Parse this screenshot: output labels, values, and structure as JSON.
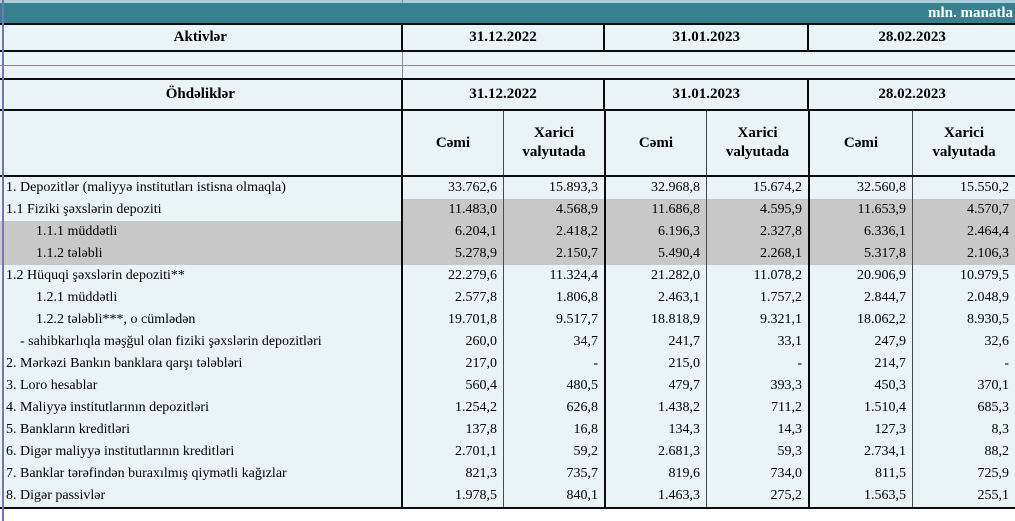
{
  "unit_label": "mln. manatla",
  "assets_header": {
    "title": "Aktivlər",
    "dates": [
      "31.12.2022",
      "31.01.2023",
      "28.02.2023"
    ]
  },
  "liabilities_header": {
    "title": "Öhdəliklər",
    "dates": [
      "31.12.2022",
      "31.01.2023",
      "28.02.2023"
    ]
  },
  "subheaders": {
    "total": "Cəmi",
    "foreign": "Xarici valyutada"
  },
  "colors": {
    "band_teal": "#37808f",
    "strip_blue": "#a8cedd",
    "cell_background": "#eaf3f6",
    "highlight_gray": "#c8c8c8",
    "selection_green": "#2d7c4f",
    "pane_line_purple": "#7577b5"
  },
  "rows": [
    {
      "label": "1. Depozitlər (maliyyə institutları istisna olmaqla)",
      "indent": 0,
      "highlight": "none",
      "block": "",
      "values": [
        "33.762,6",
        "15.893,3",
        "32.968,8",
        "15.674,2",
        "32.560,8",
        "15.550,2"
      ]
    },
    {
      "label": "1.1 Fiziki şəxslərin depoziti",
      "indent": 0,
      "highlight": "values",
      "block": "top",
      "values": [
        "11.483,0",
        "4.568,9",
        "11.686,8",
        "4.595,9",
        "11.653,9",
        "4.570,7"
      ]
    },
    {
      "label": "1.1.1 müddətli",
      "indent": 1,
      "highlight": "full",
      "block": "mid",
      "values": [
        "6.204,1",
        "2.418,2",
        "6.196,3",
        "2.327,8",
        "6.336,1",
        "2.464,4"
      ]
    },
    {
      "label": "1.1.2 tələbli",
      "indent": 1,
      "highlight": "full",
      "block": "bot",
      "values": [
        "5.278,9",
        "2.150,7",
        "5.490,4",
        "2.268,1",
        "5.317,8",
        "2.106,3"
      ]
    },
    {
      "label": "1.2 Hüquqi şəxslərin depoziti**",
      "indent": 0,
      "highlight": "none",
      "block": "",
      "values": [
        "22.279,6",
        "11.324,4",
        "21.282,0",
        "11.078,2",
        "20.906,9",
        "10.979,5"
      ]
    },
    {
      "label": "1.2.1 müddətli",
      "indent": 1,
      "highlight": "none",
      "block": "",
      "values": [
        "2.577,8",
        "1.806,8",
        "2.463,1",
        "1.757,2",
        "2.844,7",
        "2.048,9"
      ]
    },
    {
      "label": "1.2.2 tələbli***, o cümlədən",
      "indent": 1,
      "highlight": "none",
      "block": "",
      "values": [
        "19.701,8",
        "9.517,7",
        "18.818,9",
        "9.321,1",
        "18.062,2",
        "8.930,5"
      ]
    },
    {
      "label": "- sahibkarlıqla məşğul olan fiziki şəxslərin depozitləri",
      "indent": 2,
      "highlight": "none",
      "block": "",
      "values": [
        "260,0",
        "34,7",
        "241,7",
        "33,1",
        "247,9",
        "32,6"
      ]
    },
    {
      "label": "2. Mərkəzi Bankın banklara qarşı tələbləri",
      "indent": 0,
      "highlight": "none",
      "block": "",
      "values": [
        "217,0",
        "-",
        "215,0",
        "-",
        "214,7",
        "-"
      ]
    },
    {
      "label": "3. Loro hesablar",
      "indent": 0,
      "highlight": "none",
      "block": "",
      "values": [
        "560,4",
        "480,5",
        "479,7",
        "393,3",
        "450,3",
        "370,1"
      ]
    },
    {
      "label": "4. Maliyyə institutlarının  depozitləri",
      "indent": 0,
      "highlight": "none",
      "block": "",
      "values": [
        "1.254,2",
        "626,8",
        "1.438,2",
        "711,2",
        "1.510,4",
        "685,3"
      ]
    },
    {
      "label": "5. Bankların kreditləri",
      "indent": 0,
      "highlight": "none",
      "block": "",
      "values": [
        "137,8",
        "16,8",
        "134,3",
        "14,3",
        "127,3",
        "8,3"
      ]
    },
    {
      "label": "6. Digər maliyyə institutlarının kreditləri",
      "indent": 0,
      "highlight": "none",
      "block": "",
      "values": [
        "2.701,1",
        "59,2",
        "2.681,3",
        "59,3",
        "2.734,1",
        "88,2"
      ]
    },
    {
      "label": "7. Banklar tərəfindən buraxılmış qiymətli kağızlar",
      "indent": 0,
      "highlight": "none",
      "block": "",
      "values": [
        "821,3",
        "735,7",
        "819,6",
        "734,0",
        "811,5",
        "725,9"
      ]
    },
    {
      "label": "8. Digər passivlər",
      "indent": 0,
      "highlight": "none",
      "block": "",
      "values": [
        "1.978,5",
        "840,1",
        "1.463,3",
        "275,2",
        "1.563,5",
        "255,1"
      ]
    }
  ]
}
